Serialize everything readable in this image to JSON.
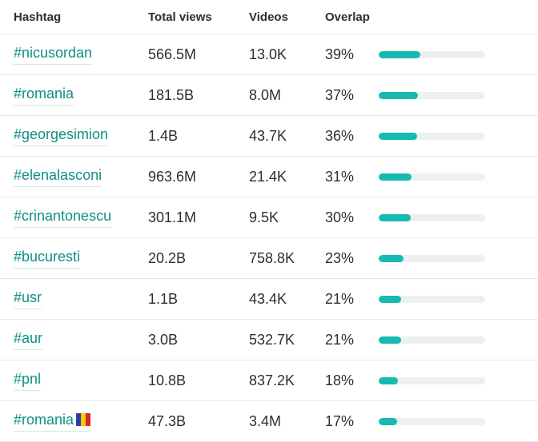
{
  "columns": {
    "hashtag": "Hashtag",
    "views": "Total views",
    "videos": "Videos",
    "overlap": "Overlap"
  },
  "colors": {
    "hashtag_link": "#0f8f84",
    "bar_fill": "#16bab3",
    "bar_track": "#edf0f3",
    "flag_blue": "#2c3ea6",
    "flag_yellow": "#f6c900",
    "flag_red": "#d22b2b"
  },
  "rows": [
    {
      "hashtag": "#nicusordan",
      "views": "566.5M",
      "videos": "13.0K",
      "overlap": "39%",
      "overlap_value": 39
    },
    {
      "hashtag": "#romania",
      "views": "181.5B",
      "videos": "8.0M",
      "overlap": "37%",
      "overlap_value": 37
    },
    {
      "hashtag": "#georgesimion",
      "views": "1.4B",
      "videos": "43.7K",
      "overlap": "36%",
      "overlap_value": 36
    },
    {
      "hashtag": "#elenalasconi",
      "views": "963.6M",
      "videos": "21.4K",
      "overlap": "31%",
      "overlap_value": 31
    },
    {
      "hashtag": "#crinantonescu",
      "views": "301.1M",
      "videos": "9.5K",
      "overlap": "30%",
      "overlap_value": 30
    },
    {
      "hashtag": "#bucuresti",
      "views": "20.2B",
      "videos": "758.8K",
      "overlap": "23%",
      "overlap_value": 23
    },
    {
      "hashtag": "#usr",
      "views": "1.1B",
      "videos": "43.4K",
      "overlap": "21%",
      "overlap_value": 21
    },
    {
      "hashtag": "#aur",
      "views": "3.0B",
      "videos": "532.7K",
      "overlap": "21%",
      "overlap_value": 21
    },
    {
      "hashtag": "#pnl",
      "views": "10.8B",
      "videos": "837.2K",
      "overlap": "18%",
      "overlap_value": 18
    },
    {
      "hashtag": "#romania",
      "views": "47.3B",
      "videos": "3.4M",
      "overlap": "17%",
      "overlap_value": 17,
      "flag_icon": "romania-flag-icon"
    }
  ]
}
